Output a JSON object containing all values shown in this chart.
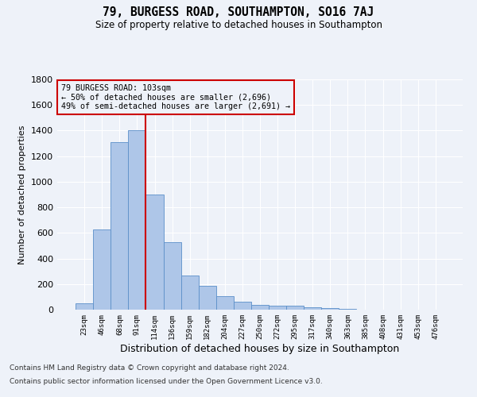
{
  "title": "79, BURGESS ROAD, SOUTHAMPTON, SO16 7AJ",
  "subtitle": "Size of property relative to detached houses in Southampton",
  "xlabel": "Distribution of detached houses by size in Southampton",
  "ylabel": "Number of detached properties",
  "footer_line1": "Contains HM Land Registry data © Crown copyright and database right 2024.",
  "footer_line2": "Contains public sector information licensed under the Open Government Licence v3.0.",
  "annotation_title": "79 BURGESS ROAD: 103sqm",
  "annotation_line1": "← 50% of detached houses are smaller (2,696)",
  "annotation_line2": "49% of semi-detached houses are larger (2,691) →",
  "bar_categories": [
    "23sqm",
    "46sqm",
    "68sqm",
    "91sqm",
    "114sqm",
    "136sqm",
    "159sqm",
    "182sqm",
    "204sqm",
    "227sqm",
    "250sqm",
    "272sqm",
    "295sqm",
    "317sqm",
    "340sqm",
    "363sqm",
    "385sqm",
    "408sqm",
    "431sqm",
    "453sqm",
    "476sqm"
  ],
  "bar_values": [
    50,
    630,
    1310,
    1400,
    900,
    530,
    270,
    185,
    105,
    65,
    35,
    30,
    28,
    20,
    10,
    5,
    3,
    2,
    2,
    1,
    1
  ],
  "bar_color": "#aec6e8",
  "bar_edge_color": "#5b8fc9",
  "vline_x": 3.5,
  "vline_color": "#cc0000",
  "ylim": [
    0,
    1800
  ],
  "yticks": [
    0,
    200,
    400,
    600,
    800,
    1000,
    1200,
    1400,
    1600,
    1800
  ],
  "annotation_box_color": "#cc0000",
  "bg_color": "#eef2f9",
  "grid_color": "#ffffff"
}
